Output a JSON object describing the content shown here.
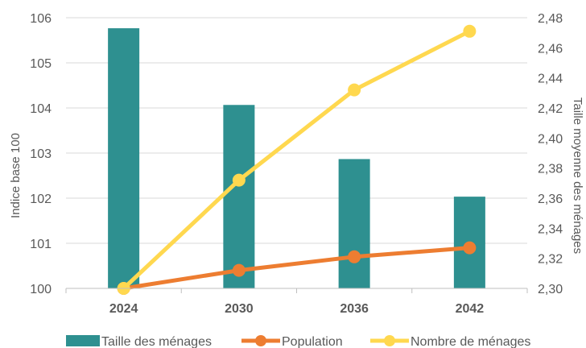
{
  "chart_data": {
    "type": "bar",
    "categories": [
      "2024",
      "2030",
      "2036",
      "2042"
    ],
    "title": "",
    "xlabel": "",
    "ylabel": "Indice base 100",
    "y2label": "Taille moyenne des ménages",
    "ylim": [
      100,
      106
    ],
    "y2lim": [
      2.3,
      2.48
    ],
    "yticks": [
      "100",
      "101",
      "102",
      "103",
      "104",
      "105",
      "106"
    ],
    "y2ticks": [
      "2,30",
      "2,32",
      "2,34",
      "2,36",
      "2,38",
      "2,40",
      "2,42",
      "2,44",
      "2,46",
      "2,48"
    ],
    "grid": true,
    "legend_position": "bottom",
    "series": [
      {
        "name": "Taille des ménages",
        "kind": "bar",
        "axis": "right",
        "color": "#2E9090",
        "values": [
          2.473,
          2.422,
          2.386,
          2.361
        ]
      },
      {
        "name": "Population",
        "kind": "line",
        "axis": "left",
        "color": "#ED7D31",
        "values": [
          100.0,
          100.4,
          100.7,
          100.9
        ]
      },
      {
        "name": "Nombre de ménages",
        "kind": "line",
        "axis": "left",
        "color": "#FFD84F",
        "values": [
          100.0,
          102.4,
          104.4,
          105.7
        ]
      }
    ]
  }
}
